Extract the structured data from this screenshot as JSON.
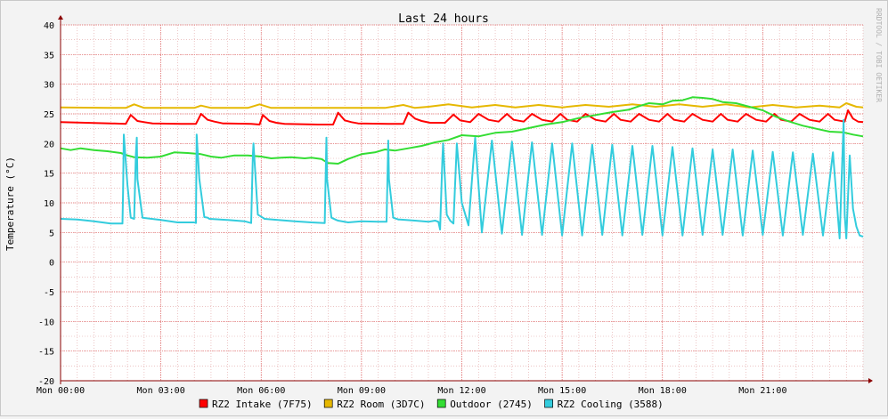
{
  "chart_data": {
    "type": "line",
    "title": "Last 24 hours",
    "ylabel": "Temperature (°C)",
    "xlabel": "",
    "watermark": "RRDTOOL / TOBI OETIKER",
    "ylim": [
      -20,
      40
    ],
    "yticks": [
      40,
      35,
      30,
      25,
      20,
      15,
      10,
      5,
      0,
      -5,
      -10,
      -15,
      -20
    ],
    "xlim": [
      0,
      24
    ],
    "xticks": [
      {
        "x": 0,
        "label": "Mon 00:00"
      },
      {
        "x": 3,
        "label": "Mon 03:00"
      },
      {
        "x": 6,
        "label": "Mon 06:00"
      },
      {
        "x": 9,
        "label": "Mon 09:00"
      },
      {
        "x": 12,
        "label": "Mon 12:00"
      },
      {
        "x": 15,
        "label": "Mon 15:00"
      },
      {
        "x": 18,
        "label": "Mon 18:00"
      },
      {
        "x": 21,
        "label": "Mon 21:00"
      }
    ],
    "grid": true,
    "legend_position": "bottom",
    "colors": {
      "background": "#f3f3f3",
      "canvas": "#ffffff",
      "grid_minor": "#e0a0a0",
      "grid_major": "#e06060",
      "axis": "#8b0000"
    },
    "series": [
      {
        "name": "RZ2 Intake (7F75)",
        "color": "#ff0000",
        "x": [
          0,
          1.5,
          1.95,
          2.1,
          2.3,
          2.5,
          2.75,
          3.6,
          4.05,
          4.2,
          4.4,
          4.6,
          4.85,
          5.7,
          5.95,
          6.05,
          6.25,
          6.45,
          6.7,
          7.7,
          8.15,
          8.3,
          8.5,
          8.7,
          8.9,
          9.8,
          10.25,
          10.4,
          10.6,
          10.8,
          11.05,
          11.5,
          11.75,
          11.95,
          12.25,
          12.5,
          12.8,
          13.1,
          13.35,
          13.55,
          13.85,
          14.1,
          14.4,
          14.7,
          14.95,
          15.15,
          15.45,
          15.7,
          16.0,
          16.3,
          16.55,
          16.75,
          17.05,
          17.3,
          17.6,
          17.9,
          18.15,
          18.35,
          18.65,
          18.9,
          19.2,
          19.5,
          19.75,
          19.95,
          20.25,
          20.5,
          20.8,
          21.1,
          21.35,
          21.55,
          21.85,
          22.1,
          22.4,
          22.7,
          22.95,
          23.15,
          23.45,
          23.55,
          23.7,
          23.85,
          24.0
        ],
        "values": [
          23.6,
          23.4,
          23.3,
          24.8,
          23.8,
          23.6,
          23.4,
          23.3,
          23.3,
          25.0,
          24.0,
          23.7,
          23.4,
          23.3,
          23.2,
          24.8,
          23.8,
          23.5,
          23.3,
          23.2,
          23.2,
          25.2,
          23.9,
          23.6,
          23.4,
          23.3,
          23.3,
          25.2,
          24.2,
          23.8,
          23.5,
          23.5,
          24.9,
          23.9,
          23.6,
          25.0,
          24.0,
          23.7,
          25.0,
          24.0,
          23.7,
          25.0,
          24.0,
          23.7,
          25.0,
          24.0,
          23.7,
          25.0,
          24.0,
          23.7,
          25.0,
          24.0,
          23.7,
          25.0,
          24.0,
          23.7,
          25.0,
          24.0,
          23.7,
          25.0,
          24.0,
          23.7,
          25.0,
          24.0,
          23.7,
          25.0,
          24.0,
          23.7,
          25.0,
          24.0,
          23.7,
          25.0,
          24.0,
          23.7,
          25.0,
          24.0,
          23.7,
          25.6,
          24.2,
          23.7,
          23.6
        ]
      },
      {
        "name": "RZ2 Room (3D7C)",
        "color": "#e6b800",
        "x": [
          0,
          1.4,
          1.95,
          2.2,
          2.5,
          4.0,
          4.2,
          4.5,
          5.6,
          5.95,
          6.3,
          7.6,
          8.15,
          8.5,
          9.7,
          10.25,
          10.6,
          11.0,
          11.6,
          12.3,
          13.0,
          13.6,
          14.3,
          15.0,
          15.7,
          16.4,
          17.1,
          17.8,
          18.5,
          19.2,
          19.9,
          20.6,
          21.3,
          22.0,
          22.7,
          23.3,
          23.5,
          23.8,
          24.0
        ],
        "values": [
          26.1,
          26.0,
          26.0,
          26.6,
          26.0,
          26.0,
          26.4,
          26.0,
          26.0,
          26.6,
          26.0,
          26.0,
          26.0,
          26.0,
          26.0,
          26.5,
          26.0,
          26.2,
          26.6,
          26.1,
          26.5,
          26.1,
          26.5,
          26.1,
          26.5,
          26.2,
          26.6,
          26.2,
          26.6,
          26.2,
          26.6,
          26.1,
          26.5,
          26.1,
          26.4,
          26.1,
          26.8,
          26.2,
          26.1
        ]
      },
      {
        "name": "Outdoor (2745)",
        "color": "#33dd33",
        "x": [
          0,
          0.3,
          0.6,
          1.0,
          1.4,
          1.8,
          2.0,
          2.2,
          2.6,
          3.0,
          3.4,
          3.8,
          4.2,
          4.5,
          4.8,
          5.2,
          5.6,
          6.0,
          6.3,
          6.6,
          6.9,
          7.3,
          7.5,
          7.8,
          8.0,
          8.3,
          8.6,
          9.0,
          9.4,
          9.7,
          10.0,
          10.4,
          10.8,
          11.2,
          11.6,
          12.0,
          12.5,
          13.0,
          13.5,
          14.0,
          14.5,
          15.0,
          15.5,
          16.0,
          16.5,
          17.0,
          17.3,
          17.6,
          18.0,
          18.3,
          18.6,
          18.9,
          19.2,
          19.5,
          19.8,
          20.2,
          20.6,
          21.0,
          21.4,
          21.8,
          22.2,
          22.6,
          23.0,
          23.4,
          23.7,
          24.0
        ],
        "values": [
          19.2,
          18.9,
          19.2,
          18.9,
          18.7,
          18.4,
          18.0,
          17.7,
          17.6,
          17.8,
          18.5,
          18.4,
          18.2,
          17.8,
          17.6,
          18.0,
          18.0,
          17.8,
          17.5,
          17.6,
          17.7,
          17.5,
          17.6,
          17.4,
          16.7,
          16.6,
          17.4,
          18.2,
          18.5,
          19.0,
          18.8,
          19.2,
          19.6,
          20.2,
          20.6,
          21.4,
          21.2,
          21.8,
          22.0,
          22.6,
          23.2,
          23.6,
          24.3,
          24.8,
          25.3,
          25.7,
          26.3,
          26.8,
          26.6,
          27.2,
          27.3,
          27.8,
          27.7,
          27.5,
          27.0,
          26.8,
          26.2,
          25.6,
          24.5,
          23.7,
          23.0,
          22.5,
          22.0,
          21.9,
          21.5,
          21.2
        ]
      },
      {
        "name": "RZ2 Cooling (3588)",
        "color": "#33ccdd",
        "x": [
          0,
          0.5,
          1.0,
          1.5,
          1.85,
          1.87,
          1.89,
          2.0,
          2.1,
          2.2,
          2.25,
          2.28,
          2.3,
          2.45,
          3.0,
          3.5,
          4.0,
          4.05,
          4.07,
          4.15,
          4.3,
          4.4,
          4.45,
          5.0,
          5.5,
          5.7,
          5.75,
          5.77,
          5.9,
          6.05,
          6.1,
          6.5,
          7.0,
          7.5,
          7.9,
          7.95,
          7.97,
          8.1,
          8.25,
          8.3,
          8.6,
          9.0,
          9.5,
          9.75,
          9.8,
          9.82,
          9.95,
          10.1,
          10.15,
          10.6,
          11.0,
          11.2,
          11.3,
          11.35,
          11.42,
          11.44,
          11.55,
          11.65,
          11.75,
          11.85,
          12.0,
          12.2,
          12.4,
          12.6,
          12.9,
          13.2,
          13.5,
          13.8,
          14.1,
          14.4,
          14.7,
          15.0,
          15.3,
          15.6,
          15.9,
          16.2,
          16.5,
          16.8,
          17.1,
          17.4,
          17.7,
          18.0,
          18.3,
          18.6,
          18.9,
          19.2,
          19.5,
          19.8,
          20.1,
          20.4,
          20.7,
          21.0,
          21.3,
          21.6,
          21.9,
          22.2,
          22.5,
          22.8,
          23.1,
          23.3,
          23.42,
          23.45,
          23.5,
          23.6,
          23.7,
          23.8,
          23.9,
          24.0
        ],
        "values": [
          7.3,
          7.2,
          6.9,
          6.5,
          6.5,
          12.0,
          21.5,
          13.0,
          7.5,
          7.3,
          18.0,
          21.0,
          14.0,
          7.5,
          7.1,
          6.7,
          6.7,
          6.6,
          21.5,
          14.0,
          7.6,
          7.5,
          7.3,
          7.1,
          6.9,
          6.6,
          18.0,
          20.0,
          8.0,
          7.5,
          7.3,
          7.1,
          6.9,
          6.7,
          6.6,
          21.0,
          14.0,
          7.5,
          7.1,
          7.0,
          6.7,
          6.9,
          6.8,
          6.8,
          20.5,
          14.0,
          7.5,
          7.2,
          7.2,
          7.0,
          6.8,
          7.0,
          6.8,
          5.5,
          17.5,
          20.0,
          8.0,
          7.0,
          6.5,
          20.0,
          10.0,
          6.2,
          21.0,
          5.0,
          20.5,
          4.8,
          20.3,
          4.6,
          20.2,
          4.6,
          20.0,
          4.5,
          20.0,
          4.5,
          19.8,
          4.6,
          19.8,
          4.5,
          19.6,
          4.6,
          19.6,
          4.5,
          19.4,
          4.5,
          19.2,
          4.6,
          19.0,
          4.6,
          19.0,
          4.5,
          18.8,
          4.6,
          18.6,
          4.5,
          18.5,
          4.6,
          18.3,
          4.5,
          18.5,
          4.0,
          24.0,
          8.0,
          4.0,
          18.0,
          9.0,
          6.0,
          4.5,
          4.3
        ]
      }
    ]
  }
}
